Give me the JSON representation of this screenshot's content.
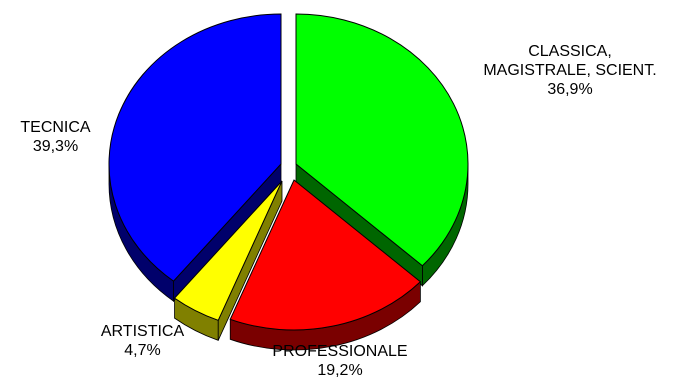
{
  "chart_data": {
    "type": "pie",
    "slices": [
      {
        "label_lines": [
          "CLASSICA,",
          "MAGISTRALE, SCIENT."
        ],
        "pct_text": "36,9%",
        "value": 36.9,
        "color": "#00ff00",
        "dark": "#006600"
      },
      {
        "label_lines": [
          "PROFESSIONALE"
        ],
        "pct_text": "19,2%",
        "value": 19.2,
        "color": "#ff0000",
        "dark": "#7a0000"
      },
      {
        "label_lines": [
          "ARTISTICA"
        ],
        "pct_text": "4,7%",
        "value": 4.7,
        "color": "#ffff00",
        "dark": "#808000"
      },
      {
        "label_lines": [
          "TECNICA"
        ],
        "pct_text": "39,3%",
        "value": 39.3,
        "color": "#0000ff",
        "dark": "#00006b"
      }
    ]
  }
}
